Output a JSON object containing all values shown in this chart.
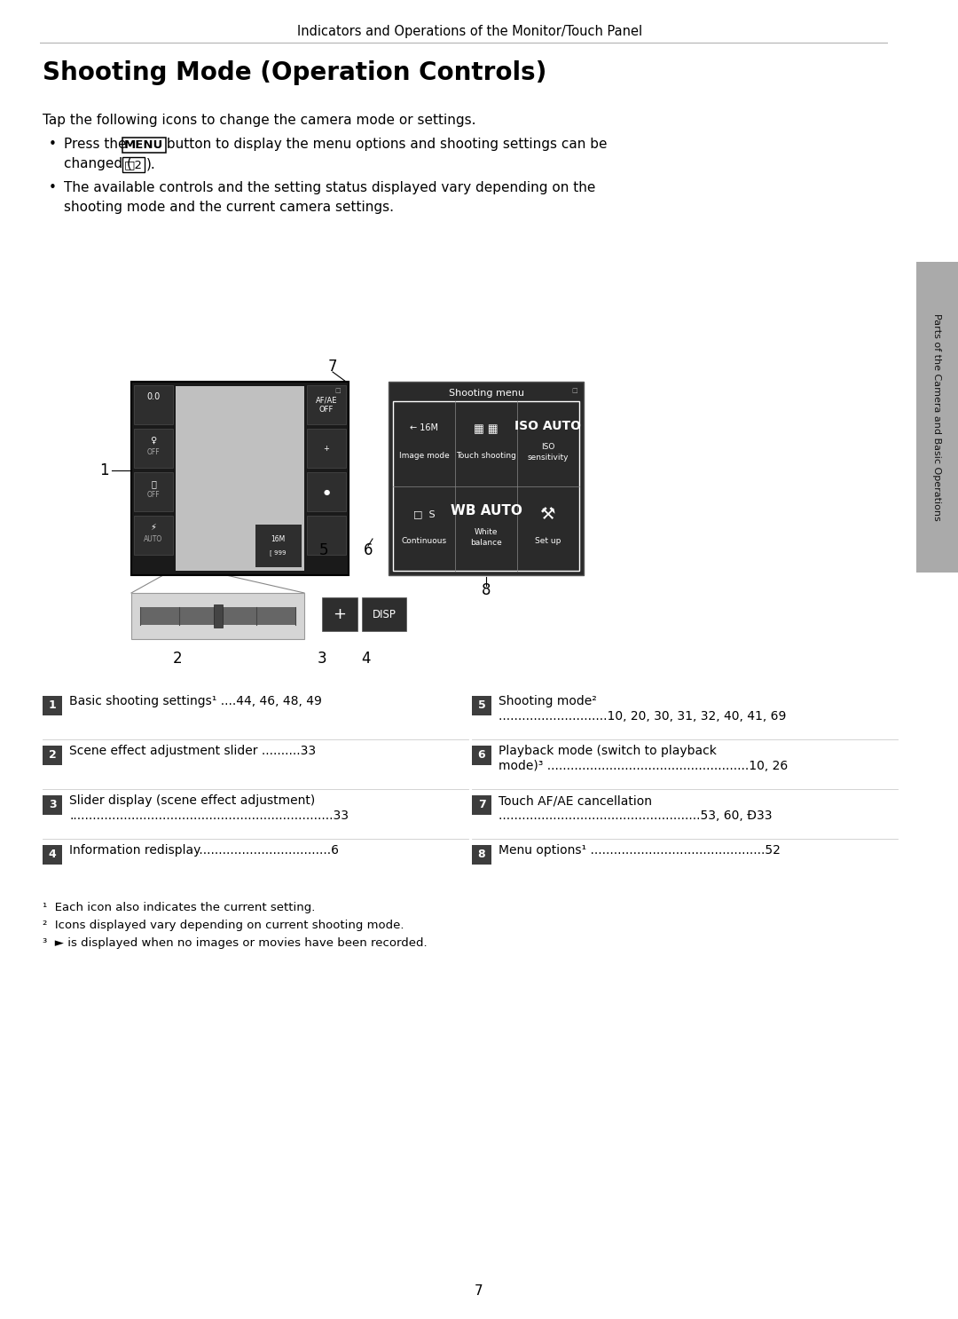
{
  "page_title": "Indicators and Operations of the Monitor/Touch Panel",
  "section_title": "Shooting Mode (Operation Controls)",
  "intro_text": "Tap the following icons to change the camera mode or settings.",
  "bullet2": "The available controls and the setting status displayed vary depending on the",
  "bullet2b": "shooting mode and the current camera settings.",
  "sidebar_text": "Parts of the Camera and Basic Operations",
  "page_number": "7",
  "label_items_left": [
    {
      "num": "1",
      "line1": "Basic shooting settings¹ ....44, 46, 48, 49",
      "line2": ""
    },
    {
      "num": "2",
      "line1": "Scene effect adjustment slider ..........33",
      "line2": ""
    },
    {
      "num": "3",
      "line1": "Slider display (scene effect adjustment)",
      "line2": "....................................................................33"
    },
    {
      "num": "4",
      "line1": "Information redisplay..................................6",
      "line2": ""
    }
  ],
  "label_items_right": [
    {
      "num": "5",
      "line1": "Shooting mode²",
      "line2": "............................10, 20, 30, 31, 32, 40, 41, 69"
    },
    {
      "num": "6",
      "line1": "Playback mode (switch to playback",
      "line2": "mode)³ ....................................................10, 26"
    },
    {
      "num": "7",
      "line1": "Touch AF/AE cancellation",
      "line2": "....................................................53, 60, Ð33"
    },
    {
      "num": "8",
      "line1": "Menu options¹ .............................................52",
      "line2": ""
    }
  ],
  "footnote1": "¹  Each icon also indicates the current setting.",
  "footnote2": "²  Icons displayed vary depending on current shooting mode.",
  "footnote3": "³  ► is displayed when no images or movies have been recorded.",
  "bg_color": "#ffffff",
  "label_bg_color": "#3d3d3d",
  "label_text_color": "#ffffff",
  "body_text_color": "#000000",
  "sidebar_bg_color": "#aaaaaa",
  "cam_dark": "#1a1a1a",
  "cam_screen": "#c0c0c0",
  "cam_btn": "#2e2e2e",
  "menu_dark": "#2a2a2a"
}
